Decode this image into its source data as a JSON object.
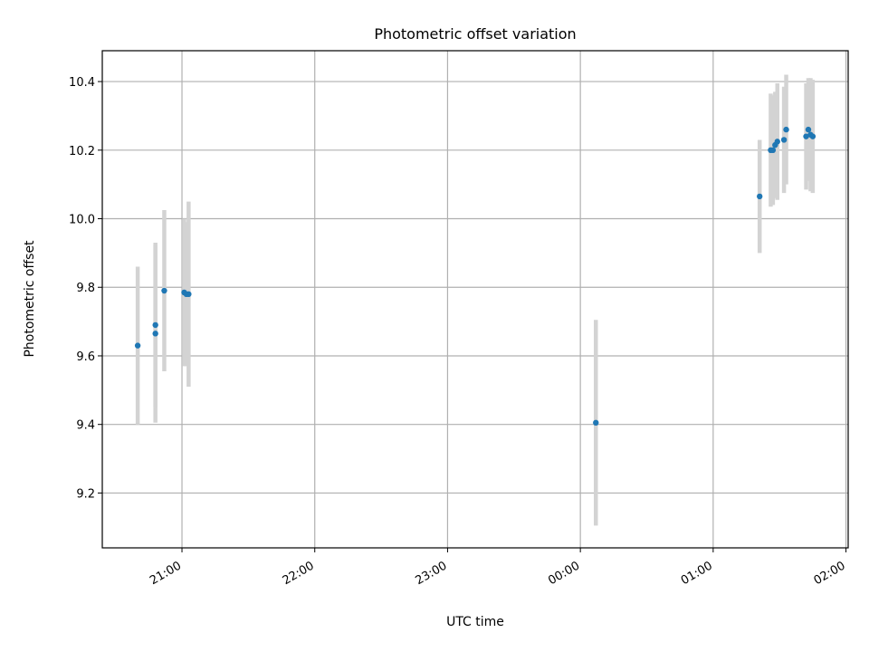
{
  "chart_data": {
    "type": "scatter",
    "title": "Photometric offset variation",
    "xlabel": "UTC time",
    "ylabel": "Photometric offset",
    "x_range": [
      "20:24",
      "02:01"
    ],
    "xlim_minutes": [
      -36,
      301
    ],
    "ylim": [
      9.04,
      10.49
    ],
    "grid": true,
    "x_ticks": [
      "21:00",
      "22:00",
      "23:00",
      "00:00",
      "01:00",
      "02:00"
    ],
    "y_ticks": [
      9.2,
      9.4,
      9.6,
      9.8,
      10.0,
      10.2,
      10.4
    ],
    "point_color": "#1f77b4",
    "errorbar_color": "#d3d3d3",
    "points": [
      {
        "x": "20:40",
        "y": 9.63,
        "err": 0.23
      },
      {
        "x": "20:48",
        "y": 9.665,
        "err": 0.26
      },
      {
        "x": "20:48",
        "y": 9.69,
        "err": 0.24
      },
      {
        "x": "20:52",
        "y": 9.79,
        "err": 0.235
      },
      {
        "x": "21:01",
        "y": 9.785,
        "err": 0.215
      },
      {
        "x": "21:02",
        "y": 9.78,
        "err": 0.21
      },
      {
        "x": "21:03",
        "y": 9.78,
        "err": 0.27
      },
      {
        "x": "00:07",
        "y": 9.405,
        "err": 0.3
      },
      {
        "x": "01:21",
        "y": 10.065,
        "err": 0.165
      },
      {
        "x": "01:26",
        "y": 10.2,
        "err": 0.165
      },
      {
        "x": "01:27",
        "y": 10.2,
        "err": 0.16
      },
      {
        "x": "01:28",
        "y": 10.215,
        "err": 0.155
      },
      {
        "x": "01:29",
        "y": 10.225,
        "err": 0.17
      },
      {
        "x": "01:32",
        "y": 10.23,
        "err": 0.155
      },
      {
        "x": "01:33",
        "y": 10.26,
        "err": 0.16
      },
      {
        "x": "01:42",
        "y": 10.24,
        "err": 0.155
      },
      {
        "x": "01:43",
        "y": 10.26,
        "err": 0.15
      },
      {
        "x": "01:44",
        "y": 10.245,
        "err": 0.165
      },
      {
        "x": "01:45",
        "y": 10.24,
        "err": 0.165
      }
    ]
  }
}
